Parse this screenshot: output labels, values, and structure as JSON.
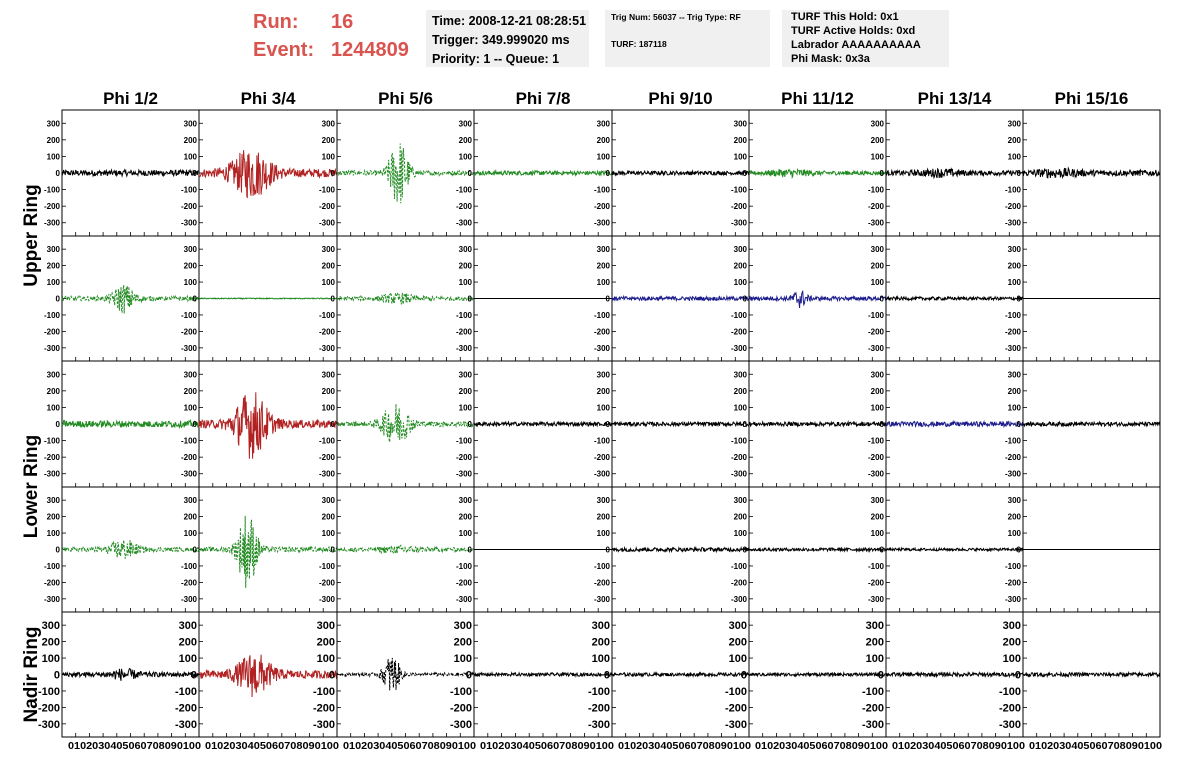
{
  "header": {
    "run_label": "Run:",
    "run_value": "16",
    "event_label": "Event:",
    "event_value": "1244809",
    "time_line": "Time: 2008-12-21 08:28:51",
    "trigger_line": "Trigger: 349.999020 ms",
    "priority_line": "Priority: 1 -- Queue: 1",
    "trig_line": "Trig Num: 56037 -- Trig Type: RF",
    "turf_line": "TURF: 187118",
    "turf_hold": "TURF This Hold: 0x1",
    "turf_active": "TURF Active Holds: 0xd",
    "labrador": "Labrador AAAAAAAAAA",
    "phi_mask": "Phi Mask: 0x3a"
  },
  "chart_data": {
    "type": "line",
    "columns": [
      "Phi 1/2",
      "Phi 3/4",
      "Phi 5/6",
      "Phi 7/8",
      "Phi 9/10",
      "Phi 11/12",
      "Phi 13/14",
      "Phi 15/16"
    ],
    "ring_labels": [
      "Upper Ring",
      "Lower Ring",
      "Nadir Ring"
    ],
    "ylim": [
      -380,
      380
    ],
    "xlim": [
      0,
      100
    ],
    "yticks": [
      -300,
      -200,
      -100,
      0,
      100,
      200,
      300
    ],
    "xtick_text": "0 10 20 30 40 50 60 70 80 90 100",
    "colors": {
      "black": "#000000",
      "red": "#b22222",
      "green": "#228b22",
      "blue": "#1c1c8c"
    },
    "panels": [
      [
        {
          "color": "black",
          "dash": false,
          "amp": 18,
          "burst": 0,
          "center": 45,
          "width": 0,
          "flat": false
        },
        {
          "color": "red",
          "dash": false,
          "amp": 25,
          "burst": 140,
          "center": 38,
          "width": 14,
          "flat": false
        },
        {
          "color": "green",
          "dash": true,
          "amp": 15,
          "burst": 200,
          "center": 45,
          "width": 7,
          "flat": false
        },
        {
          "color": "green",
          "dash": false,
          "amp": 13,
          "burst": 0,
          "center": 45,
          "width": 0,
          "flat": false
        },
        {
          "color": "black",
          "dash": false,
          "amp": 12,
          "burst": 0,
          "center": 45,
          "width": 0,
          "flat": false
        },
        {
          "color": "green",
          "dash": false,
          "amp": 12,
          "burst": 15,
          "center": 30,
          "width": 15,
          "flat": false
        },
        {
          "color": "black",
          "dash": false,
          "amp": 15,
          "burst": 15,
          "center": 40,
          "width": 15,
          "flat": false
        },
        {
          "color": "black",
          "dash": false,
          "amp": 18,
          "burst": 15,
          "center": 25,
          "width": 15,
          "flat": false
        }
      ],
      [
        {
          "color": "green",
          "dash": true,
          "amp": 14,
          "burst": 80,
          "center": 45,
          "width": 8,
          "flat": false
        },
        {
          "color": "green",
          "dash": false,
          "amp": 3,
          "burst": 0,
          "center": 45,
          "width": 0,
          "flat": false
        },
        {
          "color": "green",
          "dash": true,
          "amp": 12,
          "burst": 25,
          "center": 45,
          "width": 12,
          "flat": false
        },
        {
          "color": "black",
          "dash": false,
          "amp": 0,
          "burst": 0,
          "center": 45,
          "width": 0,
          "flat": true
        },
        {
          "color": "blue",
          "dash": false,
          "amp": 12,
          "burst": 0,
          "center": 45,
          "width": 0,
          "flat": false
        },
        {
          "color": "blue",
          "dash": false,
          "amp": 12,
          "burst": 50,
          "center": 37,
          "width": 5,
          "flat": false
        },
        {
          "color": "black",
          "dash": false,
          "amp": 10,
          "burst": 0,
          "center": 45,
          "width": 0,
          "flat": false
        },
        {
          "color": "black",
          "dash": false,
          "amp": 0,
          "burst": 0,
          "center": 45,
          "width": 0,
          "flat": true
        }
      ],
      [
        {
          "color": "green",
          "dash": false,
          "amp": 20,
          "burst": 0,
          "center": 45,
          "width": 0,
          "flat": false
        },
        {
          "color": "red",
          "dash": false,
          "amp": 25,
          "burst": 190,
          "center": 38,
          "width": 12,
          "flat": false
        },
        {
          "color": "green",
          "dash": true,
          "amp": 15,
          "burst": 120,
          "center": 43,
          "width": 10,
          "flat": false
        },
        {
          "color": "black",
          "dash": false,
          "amp": 12,
          "burst": 0,
          "center": 45,
          "width": 0,
          "flat": false
        },
        {
          "color": "black",
          "dash": false,
          "amp": 12,
          "burst": 0,
          "center": 45,
          "width": 0,
          "flat": false
        },
        {
          "color": "black",
          "dash": false,
          "amp": 12,
          "burst": 0,
          "center": 45,
          "width": 0,
          "flat": false
        },
        {
          "color": "blue",
          "dash": false,
          "amp": 15,
          "burst": 0,
          "center": 45,
          "width": 0,
          "flat": false
        },
        {
          "color": "black",
          "dash": false,
          "amp": 12,
          "burst": 0,
          "center": 45,
          "width": 0,
          "flat": false
        }
      ],
      [
        {
          "color": "green",
          "dash": true,
          "amp": 13,
          "burst": 55,
          "center": 45,
          "width": 10,
          "flat": false
        },
        {
          "color": "green",
          "dash": true,
          "amp": 15,
          "burst": 230,
          "center": 35,
          "width": 7,
          "flat": false
        },
        {
          "color": "green",
          "dash": true,
          "amp": 12,
          "burst": 15,
          "center": 45,
          "width": 15,
          "flat": false
        },
        {
          "color": "black",
          "dash": false,
          "amp": 0,
          "burst": 0,
          "center": 45,
          "width": 0,
          "flat": true
        },
        {
          "color": "black",
          "dash": false,
          "amp": 12,
          "burst": 0,
          "center": 45,
          "width": 0,
          "flat": false
        },
        {
          "color": "black",
          "dash": false,
          "amp": 10,
          "burst": 0,
          "center": 45,
          "width": 0,
          "flat": false
        },
        {
          "color": "black",
          "dash": false,
          "amp": 8,
          "burst": 0,
          "center": 45,
          "width": 0,
          "flat": false
        },
        {
          "color": "black",
          "dash": false,
          "amp": 0,
          "burst": 0,
          "center": 45,
          "width": 0,
          "flat": true
        }
      ],
      [
        {
          "color": "black",
          "dash": false,
          "amp": 15,
          "burst": 25,
          "center": 45,
          "width": 10,
          "flat": false
        },
        {
          "color": "red",
          "dash": false,
          "amp": 25,
          "burst": 120,
          "center": 40,
          "width": 12,
          "flat": false
        },
        {
          "color": "black",
          "dash": true,
          "amp": 10,
          "burst": 120,
          "center": 40,
          "width": 6,
          "flat": false
        },
        {
          "color": "black",
          "dash": false,
          "amp": 10,
          "burst": 0,
          "center": 45,
          "width": 0,
          "flat": false
        },
        {
          "color": "black",
          "dash": false,
          "amp": 10,
          "burst": 0,
          "center": 45,
          "width": 0,
          "flat": false
        },
        {
          "color": "black",
          "dash": false,
          "amp": 10,
          "burst": 0,
          "center": 45,
          "width": 0,
          "flat": false
        },
        {
          "color": "black",
          "dash": false,
          "amp": 12,
          "burst": 0,
          "center": 45,
          "width": 0,
          "flat": false
        },
        {
          "color": "black",
          "dash": false,
          "amp": 12,
          "burst": 0,
          "center": 45,
          "width": 0,
          "flat": false
        }
      ]
    ]
  }
}
